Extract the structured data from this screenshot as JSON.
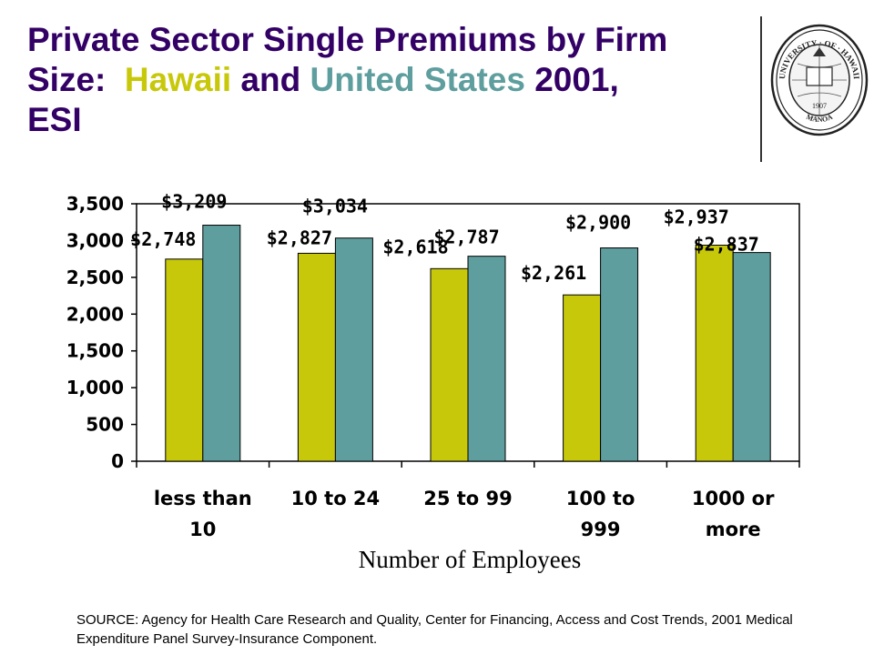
{
  "title": {
    "line1": "Private Sector Single Premiums by Firm",
    "size_label": "Size:",
    "hawaii": "Hawaii",
    "and": "and",
    "us": "United States",
    "year": "2001,",
    "line3": "ESI"
  },
  "logo": {
    "name": "university-of-hawaii-seal",
    "ring_text_top": "UNIVERSITY · OF · HAWAII",
    "ring_text_bottom": "MANOA",
    "year": "1907"
  },
  "colors": {
    "title": "#330066",
    "hawaii": "#C8C80A",
    "us": "#5F9E9E"
  },
  "chart_data": {
    "type": "bar",
    "categories": [
      [
        "less than",
        "10"
      ],
      [
        "10 to 24"
      ],
      [
        "25 to 99"
      ],
      [
        "100 to",
        "999"
      ],
      [
        "1000 or",
        "more"
      ]
    ],
    "series": [
      {
        "values": [
          2748,
          2827,
          2618,
          2261,
          2937
        ],
        "labels": [
          "$2,748",
          "$2,827",
          "$2,618",
          "$2,261",
          "$2,937"
        ],
        "color": "#C8C80A"
      },
      {
        "values": [
          3209,
          3034,
          2787,
          2900,
          2837
        ],
        "labels": [
          "$3,209",
          "$3,034",
          "$2,787",
          "$2,900",
          "$2,837"
        ],
        "color": "#5F9E9E"
      }
    ],
    "yticks": [
      "0",
      "500",
      "1,000",
      "1,500",
      "2,000",
      "2,500",
      "3,000",
      "3,500"
    ],
    "ylim": [
      0,
      3500
    ],
    "xlabel": "Number of Employees",
    "ylabel": "",
    "grid": false
  },
  "source": "SOURCE: Agency for Health Care Research and Quality, Center for Financing, Access and Cost Trends, 2001 Medical Expenditure Panel Survey-Insurance Component."
}
